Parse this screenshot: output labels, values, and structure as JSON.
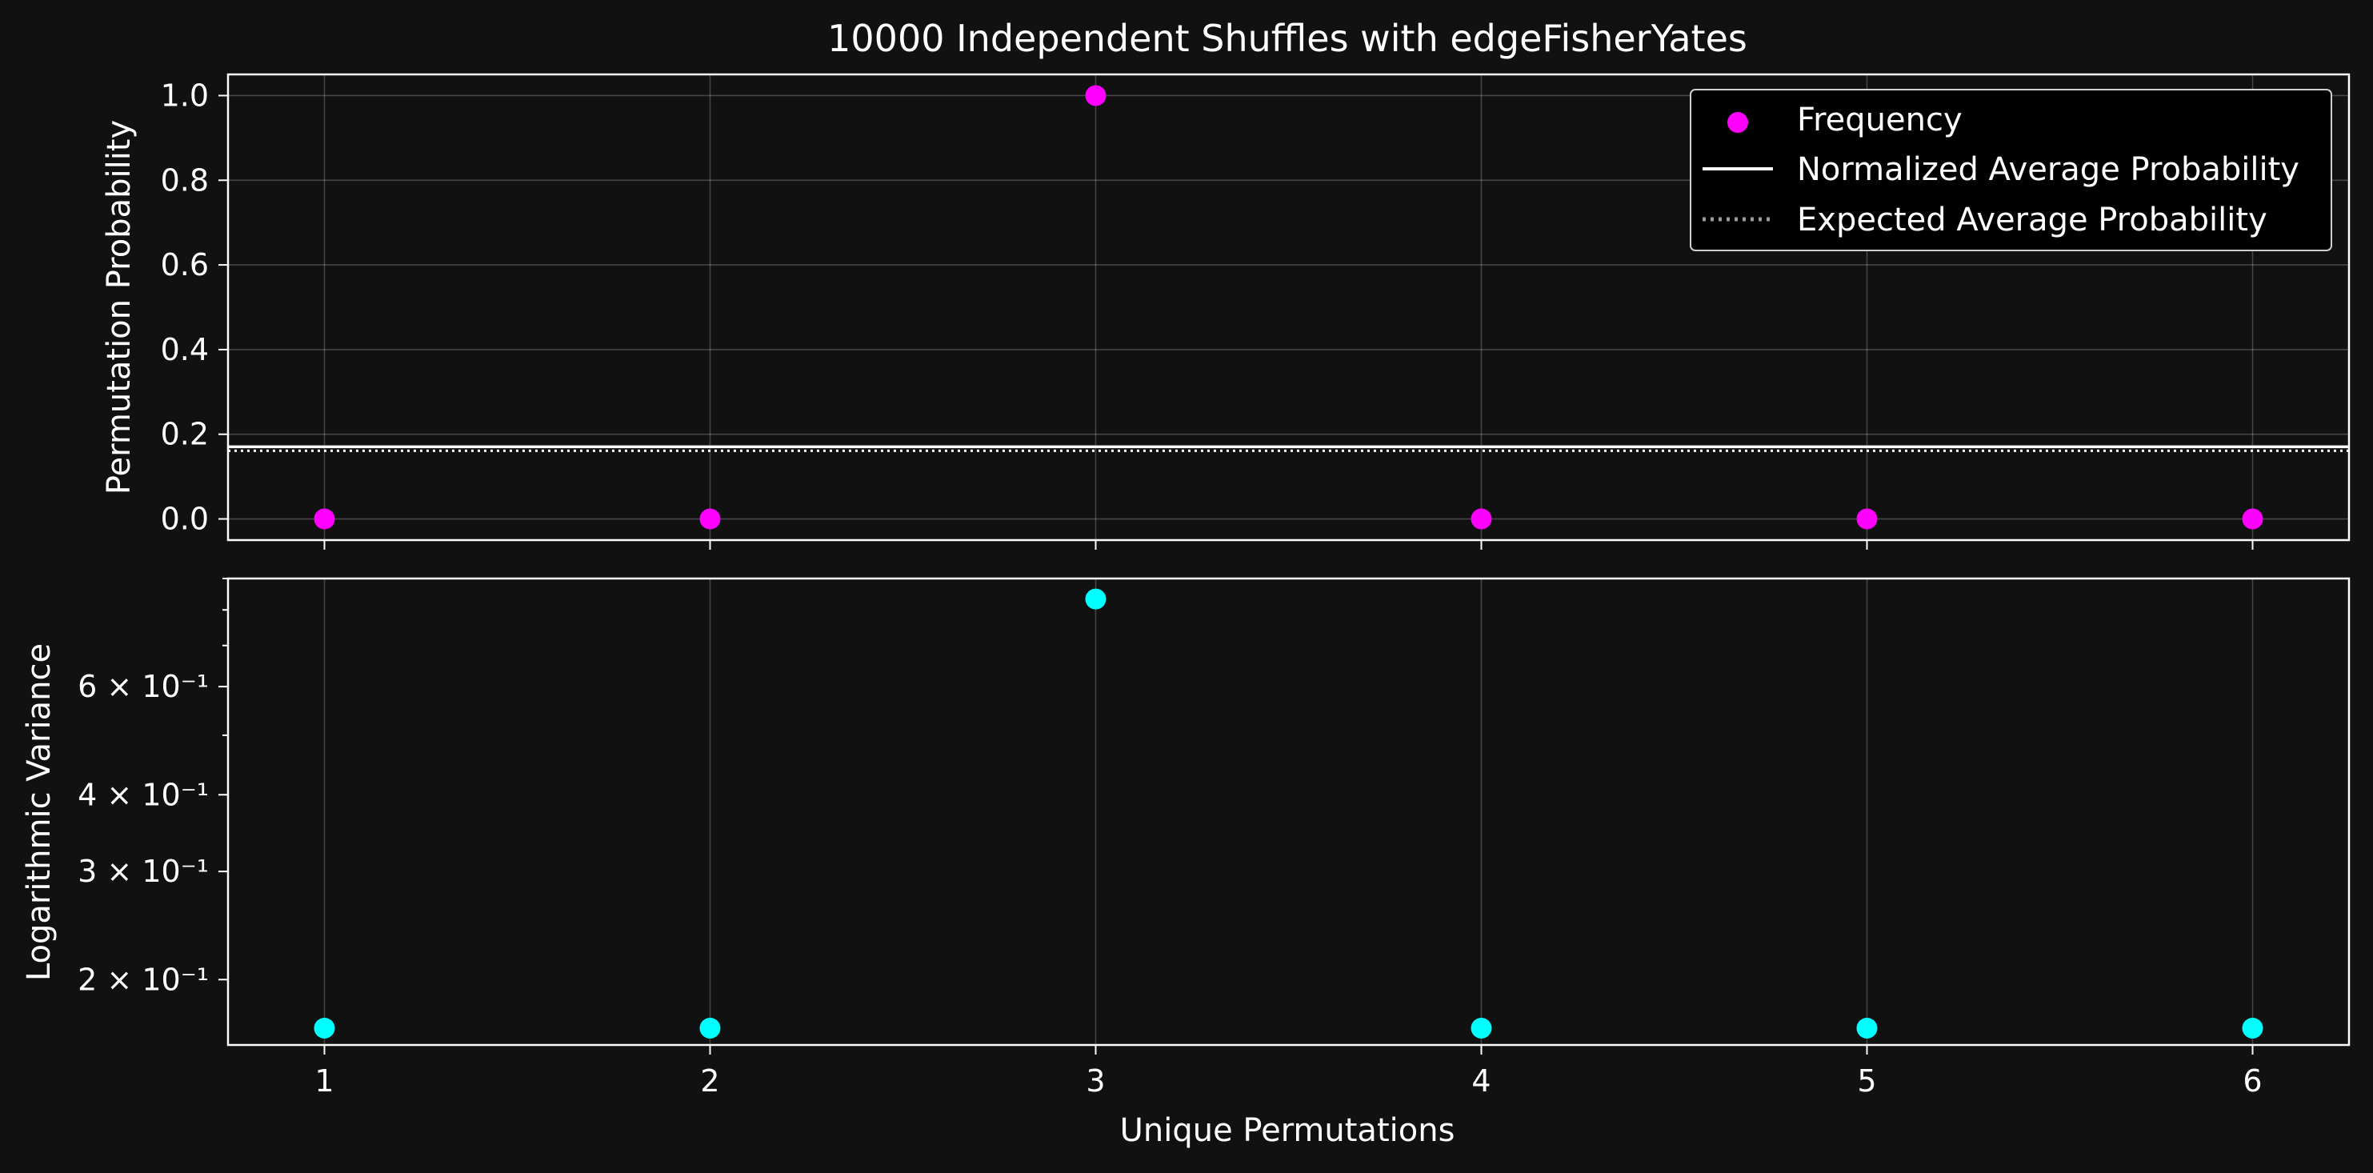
{
  "chart_data": {
    "type": "scatter",
    "title": "10000 Independent Shuffles with edgeFisherYates",
    "xlabel": "Unique Permutations",
    "x": [
      1,
      2,
      3,
      4,
      5,
      6
    ],
    "xlim": [
      0.75,
      6.25
    ],
    "colors": {
      "background": "#111111",
      "frequency": "#ff00ff",
      "variance": "#00ffff",
      "normalized": "#ffffff",
      "expected": "#9a9a9a"
    },
    "panels": [
      {
        "ylabel": "Permutation Probability",
        "yscale": "linear",
        "ylim": [
          -0.05,
          1.05
        ],
        "yticks": [
          0.0,
          0.2,
          0.4,
          0.6,
          0.8,
          1.0
        ],
        "yticklabels": [
          "0.0",
          "0.2",
          "0.4",
          "0.6",
          "0.8",
          "1.0"
        ],
        "grid": true,
        "series": [
          {
            "name": "Frequency",
            "kind": "scatter",
            "y": [
              0.0,
              0.0,
              1.0,
              0.0,
              0.0,
              0.0
            ]
          },
          {
            "name": "Normalized Average Probability",
            "kind": "hline",
            "y": 0.1667
          },
          {
            "name": "Expected Average Probability",
            "kind": "hline-dotted",
            "y": 0.1667
          }
        ],
        "legend": {
          "position": "upper-right",
          "entries": [
            "Frequency",
            "Normalized Average Probability",
            "Expected Average Probability"
          ]
        }
      },
      {
        "ylabel": "Logarithmic Variance",
        "yscale": "log",
        "ylim": [
          0.1565,
          0.9
        ],
        "yticks": [
          0.2,
          0.3,
          0.4,
          0.6
        ],
        "yticklabels": [
          "2 × 10⁻¹",
          "3 × 10⁻¹",
          "4 × 10⁻¹",
          "6 × 10⁻¹"
        ],
        "minor_ticks": [
          0.5,
          0.7,
          0.8,
          0.9
        ],
        "grid": true,
        "series": [
          {
            "name": "",
            "kind": "scatter",
            "y": [
              0.1667,
              0.1667,
              0.8333,
              0.1667,
              0.1667,
              0.1667
            ]
          }
        ]
      }
    ]
  }
}
